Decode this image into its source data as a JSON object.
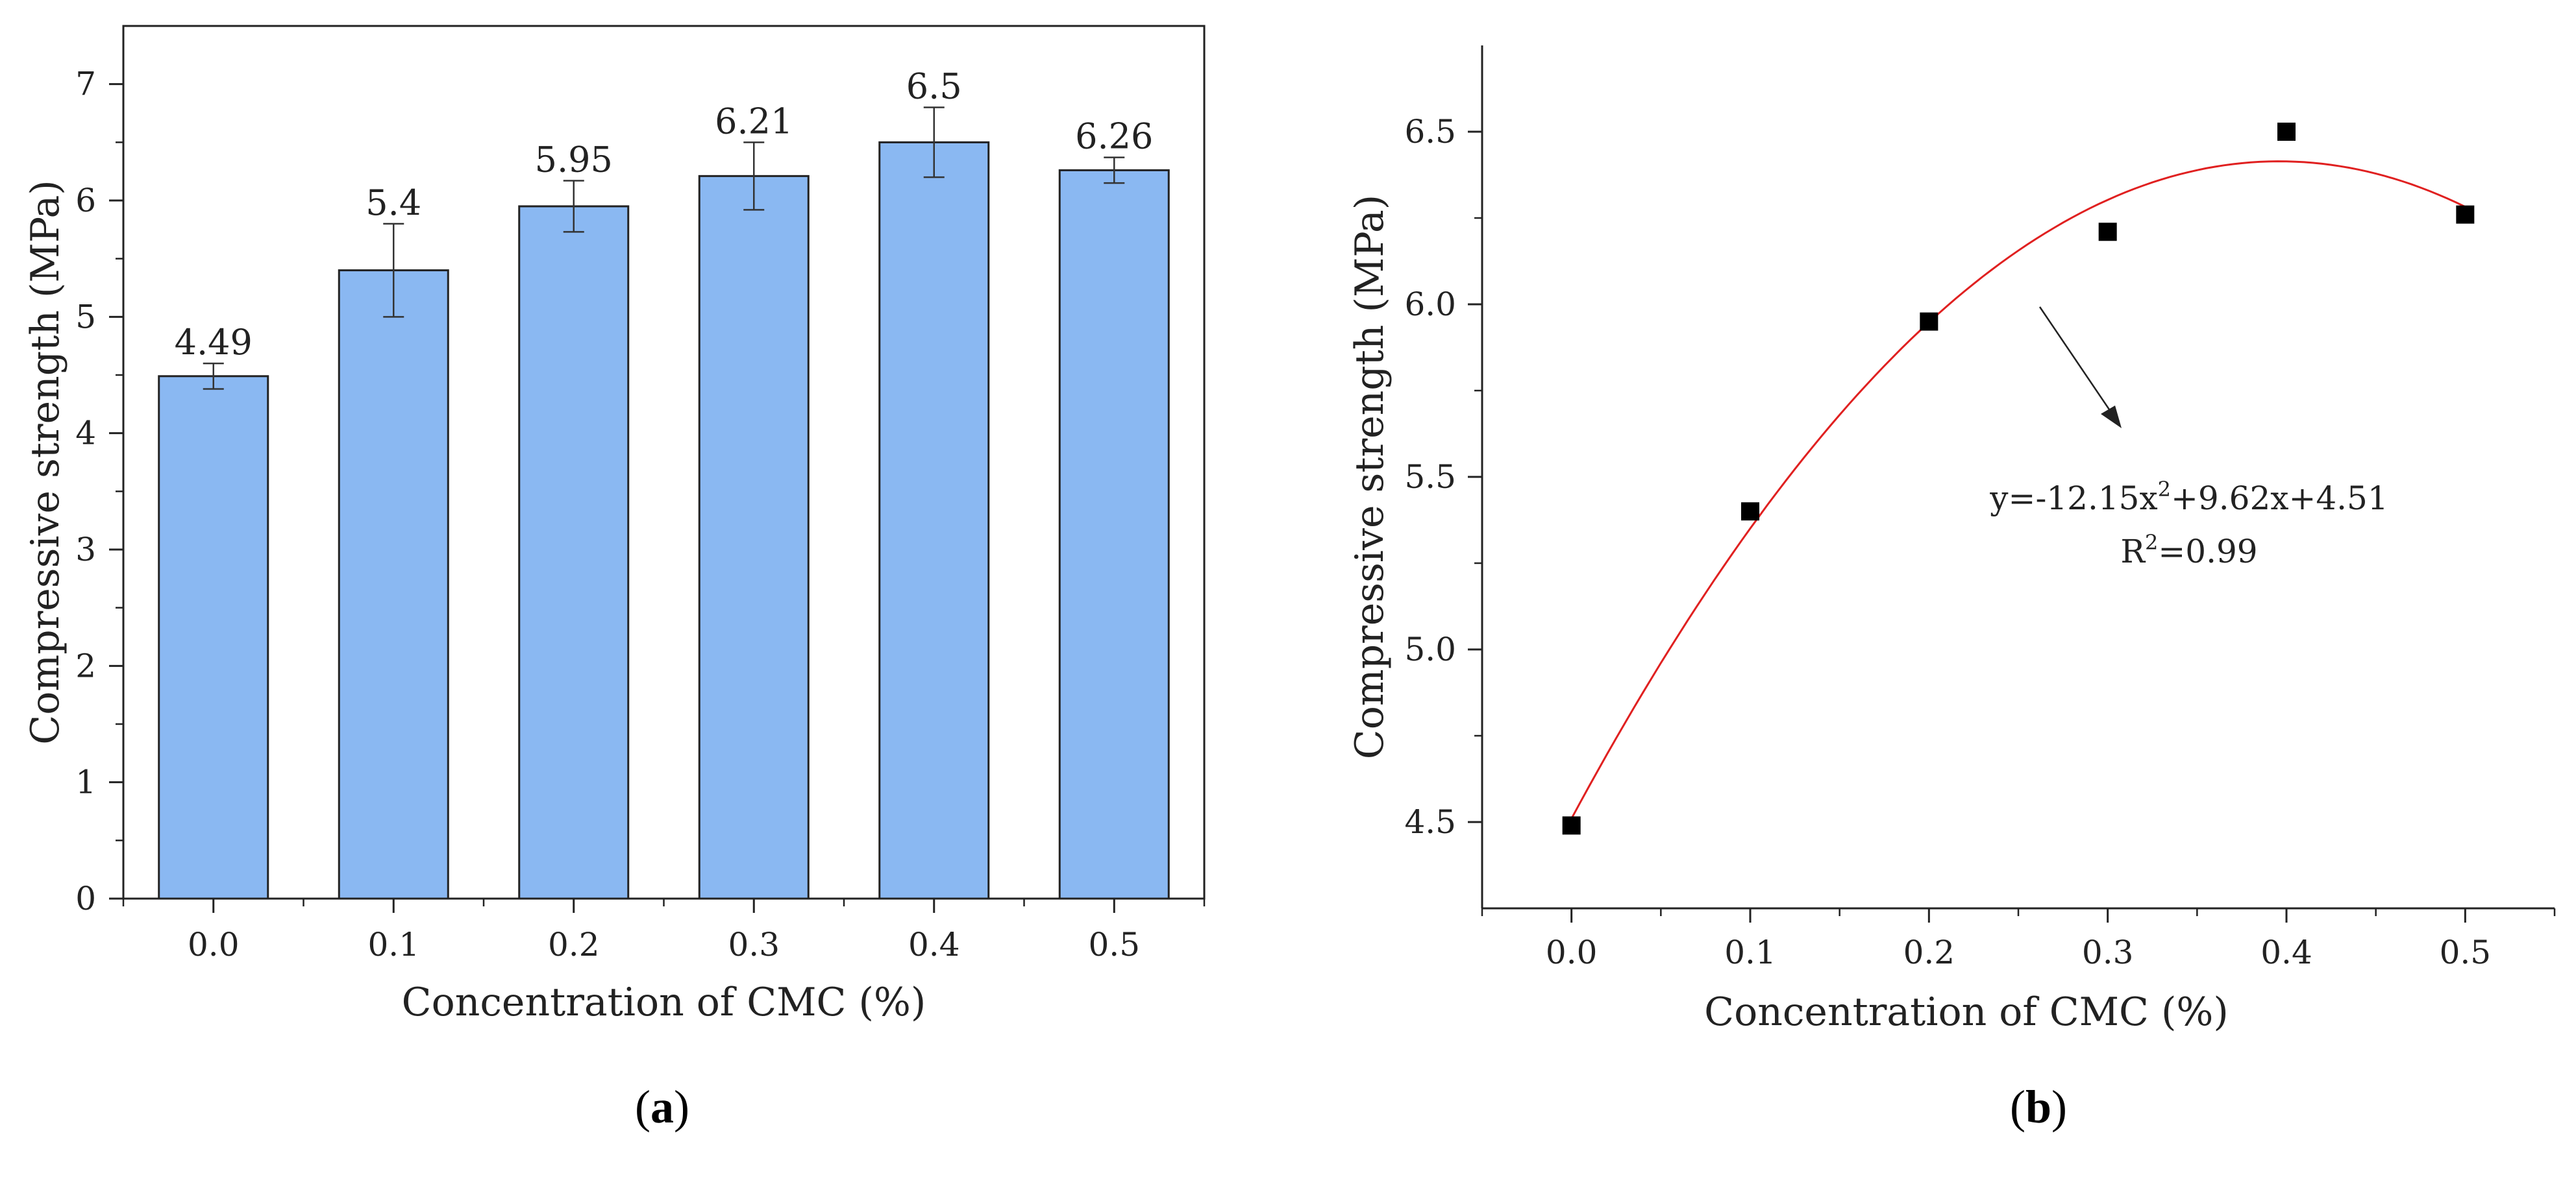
{
  "chart_data": [
    {
      "panel": "(a)",
      "panel_label_letter": "a",
      "type": "bar",
      "categories": [
        "0.0",
        "0.1",
        "0.2",
        "0.3",
        "0.4",
        "0.5"
      ],
      "values": [
        4.49,
        5.4,
        5.95,
        6.21,
        6.5,
        6.26
      ],
      "errors": [
        0.11,
        0.4,
        0.22,
        0.29,
        0.3,
        0.11
      ],
      "data_labels": [
        "4.49",
        "5.4",
        "5.95",
        "6.21",
        "6.5",
        "6.26"
      ],
      "xlabel": "Concentration of CMC (%)",
      "ylabel": "Compressive strength (MPa)",
      "ylim": [
        0,
        7.5
      ],
      "yticks": [
        0,
        1,
        2,
        3,
        4,
        5,
        6,
        7
      ],
      "ytick_labels": [
        "0",
        "1",
        "2",
        "3",
        "4",
        "5",
        "6",
        "7"
      ],
      "grid": false,
      "bar_color": "#8ab8f2"
    },
    {
      "panel": "(b)",
      "panel_label_letter": "b",
      "type": "scatter",
      "x": [
        0.0,
        0.1,
        0.2,
        0.3,
        0.4,
        0.5
      ],
      "y": [
        4.49,
        5.4,
        5.95,
        6.21,
        6.5,
        6.26
      ],
      "xlim": [
        -0.05,
        0.55
      ],
      "ylim": [
        4.25,
        6.75
      ],
      "xticks": [
        0.0,
        0.1,
        0.2,
        0.3,
        0.4,
        0.5
      ],
      "xtick_labels": [
        "0.0",
        "0.1",
        "0.2",
        "0.3",
        "0.4",
        "0.5"
      ],
      "yticks": [
        4.5,
        5.0,
        5.5,
        6.0,
        6.5
      ],
      "ytick_labels": [
        "4.5",
        "5.0",
        "5.5",
        "6.0",
        "6.5"
      ],
      "xlabel": "Concentration of CMC (%)",
      "ylabel": "Compressive strength (MPa)",
      "grid": false,
      "fit": {
        "a": -12.15,
        "b": 9.62,
        "c": 4.51,
        "color": "#e02020"
      },
      "equation": {
        "prefix": "y=-12.15x",
        "sup": "2",
        "suffix": "+9.62x+4.51"
      },
      "r_squared": {
        "prefix": "R",
        "sup": "2",
        "suffix": "=0.99"
      },
      "marker_color": "#000000"
    }
  ]
}
